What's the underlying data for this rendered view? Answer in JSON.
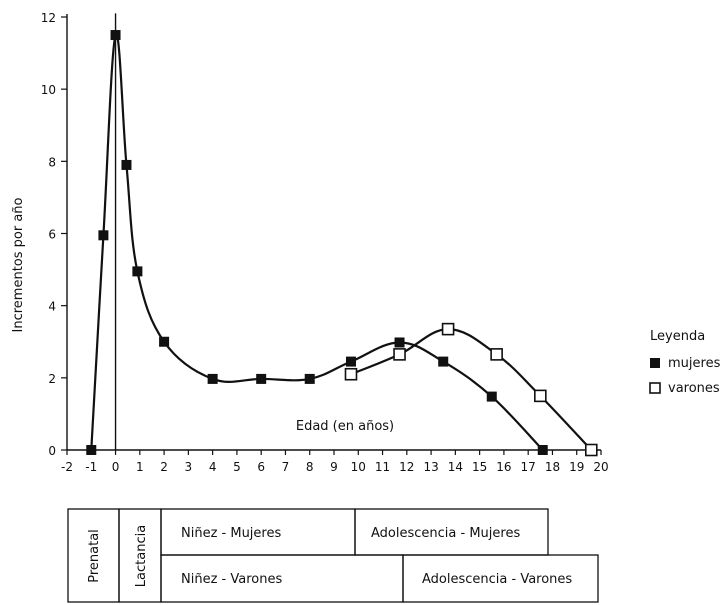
{
  "chart_data": {
    "type": "line",
    "title": "",
    "xlabel": "Edad (en años)",
    "ylabel": "Incrementos por año",
    "xlim": [
      -2,
      20
    ],
    "ylim": [
      0,
      12
    ],
    "x_ticks": [
      -2,
      -1,
      0,
      1,
      2,
      3,
      4,
      5,
      6,
      7,
      8,
      9,
      10,
      11,
      12,
      13,
      14,
      15,
      16,
      17,
      18,
      19,
      20
    ],
    "y_ticks": [
      0,
      2,
      4,
      6,
      8,
      10,
      12
    ],
    "grid": false,
    "legend": {
      "title": "Leyenda",
      "placement": "right"
    },
    "series": [
      {
        "name": "mujeres",
        "marker": "filled-square",
        "points": [
          [
            -1,
            0
          ],
          [
            -0.5,
            5.95
          ],
          [
            0,
            11.5
          ],
          [
            0.45,
            7.9
          ],
          [
            0.9,
            4.95
          ],
          [
            2,
            3.0
          ],
          [
            4,
            1.97
          ],
          [
            6,
            1.97
          ],
          [
            8,
            1.97
          ],
          [
            9.7,
            2.45
          ],
          [
            11.7,
            2.98
          ],
          [
            13.5,
            2.45
          ],
          [
            15.5,
            1.48
          ],
          [
            17.6,
            0
          ]
        ]
      },
      {
        "name": "varones",
        "marker": "open-square",
        "points": [
          [
            9.7,
            2.1
          ],
          [
            11.7,
            2.65
          ],
          [
            13.7,
            3.35
          ],
          [
            15.7,
            2.65
          ],
          [
            17.5,
            1.5
          ],
          [
            19.6,
            0
          ]
        ]
      }
    ],
    "peak_line": {
      "x": 0,
      "y": 12.1
    },
    "stages_table": {
      "prenatal": "Prenatal",
      "lactancia": "Lactancia",
      "ninez_mujeres": "Niñez - Mujeres",
      "adolescencia_mujeres": "Adolescencia - Mujeres",
      "ninez_varones": "Niñez - Varones",
      "adolescencia_varones": "Adolescencia - Varones"
    }
  },
  "colors": {
    "ink": "#111111",
    "background": "#ffffff"
  }
}
